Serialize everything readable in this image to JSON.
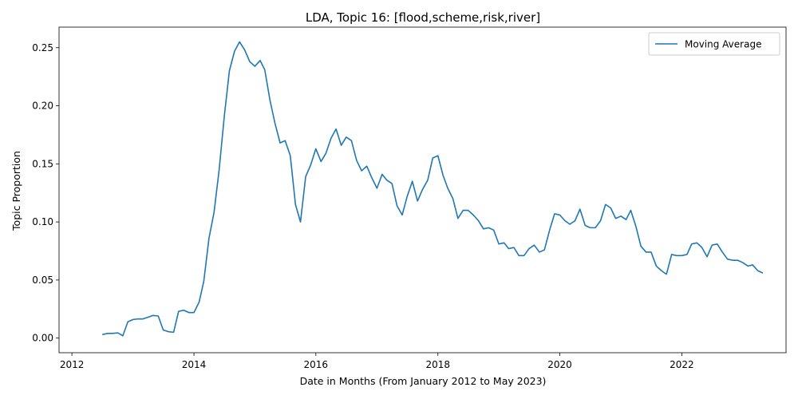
{
  "chart_data": {
    "type": "line",
    "title": "LDA, Topic 16: [flood,scheme,risk,river]",
    "xlabel": "Date in Months (From January 2012 to May 2023)",
    "ylabel": "Topic Proportion",
    "xlim": [
      "2011-10-16",
      "2023-09-17"
    ],
    "ylim": [
      -0.0126,
      0.2677
    ],
    "x_ticks": [
      {
        "label": "2012",
        "date": "2012-01-01"
      },
      {
        "label": "2014",
        "date": "2014-01-01"
      },
      {
        "label": "2016",
        "date": "2016-01-01"
      },
      {
        "label": "2018",
        "date": "2018-01-01"
      },
      {
        "label": "2020",
        "date": "2020-01-01"
      },
      {
        "label": "2022",
        "date": "2022-01-01"
      }
    ],
    "y_ticks": [
      0.0,
      0.05,
      0.1,
      0.15,
      0.2,
      0.25
    ],
    "y_tick_labels": [
      "0.00",
      "0.05",
      "0.10",
      "0.15",
      "0.20",
      "0.25"
    ],
    "legend": {
      "position": "top-right",
      "entries": [
        "Moving Average"
      ]
    },
    "grid": false,
    "colors": {
      "line": "#1f77b4"
    },
    "series": [
      {
        "name": "Moving Average",
        "x": [
          "2012-07",
          "2012-08",
          "2012-09",
          "2012-10",
          "2012-11",
          "2012-12",
          "2013-01",
          "2013-02",
          "2013-03",
          "2013-04",
          "2013-05",
          "2013-06",
          "2013-07",
          "2013-08",
          "2013-09",
          "2013-10",
          "2013-11",
          "2013-12",
          "2014-01",
          "2014-02",
          "2014-03",
          "2014-04",
          "2014-05",
          "2014-06",
          "2014-07",
          "2014-08",
          "2014-09",
          "2014-10",
          "2014-11",
          "2014-12",
          "2015-01",
          "2015-02",
          "2015-03",
          "2015-04",
          "2015-05",
          "2015-06",
          "2015-07",
          "2015-08",
          "2015-09",
          "2015-10",
          "2015-11",
          "2015-12",
          "2016-01",
          "2016-02",
          "2016-03",
          "2016-04",
          "2016-05",
          "2016-06",
          "2016-07",
          "2016-08",
          "2016-09",
          "2016-10",
          "2016-11",
          "2016-12",
          "2017-01",
          "2017-02",
          "2017-03",
          "2017-04",
          "2017-05",
          "2017-06",
          "2017-07",
          "2017-08",
          "2017-09",
          "2017-10",
          "2017-11",
          "2017-12",
          "2018-01",
          "2018-02",
          "2018-03",
          "2018-04",
          "2018-05",
          "2018-06",
          "2018-07",
          "2018-08",
          "2018-09",
          "2018-10",
          "2018-11",
          "2018-12",
          "2019-01",
          "2019-02",
          "2019-03",
          "2019-04",
          "2019-05",
          "2019-06",
          "2019-07",
          "2019-08",
          "2019-09",
          "2019-10",
          "2019-11",
          "2019-12",
          "2020-01",
          "2020-02",
          "2020-03",
          "2020-04",
          "2020-05",
          "2020-06",
          "2020-07",
          "2020-08",
          "2020-09",
          "2020-10",
          "2020-11",
          "2020-12",
          "2021-01",
          "2021-02",
          "2021-03",
          "2021-04",
          "2021-05",
          "2021-06",
          "2021-07",
          "2021-08",
          "2021-09",
          "2021-10",
          "2021-11",
          "2021-12",
          "2022-01",
          "2022-02",
          "2022-03",
          "2022-04",
          "2022-05",
          "2022-06",
          "2022-07",
          "2022-08",
          "2022-09",
          "2022-10",
          "2022-11",
          "2022-12",
          "2023-01",
          "2023-02",
          "2023-03",
          "2023-04",
          "2023-05"
        ],
        "values": [
          0.003,
          0.004,
          0.004,
          0.0045,
          0.002,
          0.014,
          0.016,
          0.0165,
          0.0165,
          0.018,
          0.0195,
          0.019,
          0.007,
          0.0055,
          0.005,
          0.023,
          0.024,
          0.022,
          0.022,
          0.031,
          0.049,
          0.086,
          0.108,
          0.145,
          0.19,
          0.23,
          0.247,
          0.255,
          0.248,
          0.238,
          0.234,
          0.239,
          0.231,
          0.205,
          0.185,
          0.168,
          0.17,
          0.157,
          0.115,
          0.1,
          0.139,
          0.149,
          0.163,
          0.152,
          0.159,
          0.172,
          0.18,
          0.166,
          0.173,
          0.17,
          0.153,
          0.144,
          0.148,
          0.138,
          0.129,
          0.141,
          0.136,
          0.133,
          0.114,
          0.106,
          0.122,
          0.135,
          0.118,
          0.128,
          0.136,
          0.155,
          0.157,
          0.14,
          0.129,
          0.12,
          0.103,
          0.11,
          0.11,
          0.106,
          0.101,
          0.094,
          0.095,
          0.093,
          0.081,
          0.082,
          0.077,
          0.078,
          0.071,
          0.071,
          0.077,
          0.08,
          0.074,
          0.076,
          0.093,
          0.107,
          0.106,
          0.101,
          0.098,
          0.101,
          0.111,
          0.097,
          0.095,
          0.095,
          0.101,
          0.115,
          0.112,
          0.103,
          0.105,
          0.102,
          0.11,
          0.096,
          0.079,
          0.074,
          0.074,
          0.062,
          0.058,
          0.055,
          0.072,
          0.071,
          0.071,
          0.072,
          0.081,
          0.082,
          0.078,
          0.07,
          0.08,
          0.081,
          0.074,
          0.068,
          0.067,
          0.067,
          0.065,
          0.062,
          0.063,
          0.058,
          0.056
        ]
      }
    ]
  }
}
